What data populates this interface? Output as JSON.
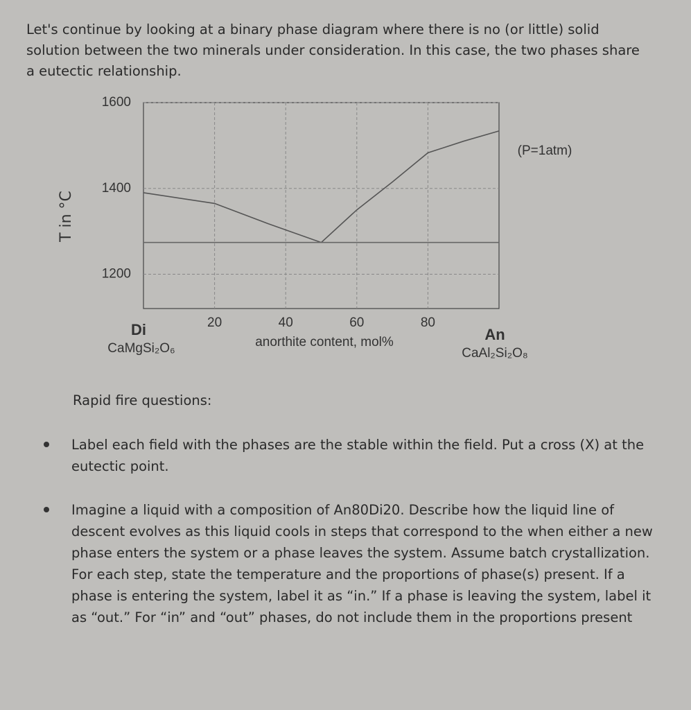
{
  "intro": "Let's continue by looking at a binary phase diagram where there is no (or little) solid solution between the two minerals under consideration.  In this case, the two phases share a eutectic relationship.",
  "chart_data": {
    "type": "line",
    "y_label": "T in °C",
    "x_label": "anorthite content, mol%",
    "annotation": "(P=1atm)",
    "left_end": {
      "name": "Di",
      "formula": "CaMgSi₂O₆"
    },
    "right_end": {
      "name": "An",
      "formula": "CaAl₂Si₂O₈"
    },
    "x": [
      0,
      20,
      35,
      50,
      60,
      70,
      80,
      90,
      100
    ],
    "series": [
      {
        "color": "#555555",
        "values": [
          1390,
          1365,
          1318,
          1274,
          1350,
          1415,
          1483,
          1510,
          1534
        ]
      },
      {
        "color": "#666666",
        "values": [
          1274,
          1274,
          1274,
          1274,
          1274,
          1274,
          1274,
          1274,
          1274
        ]
      }
    ],
    "xlim": [
      0,
      100
    ],
    "xticks": [
      20,
      40,
      60,
      80
    ],
    "ylim": [
      1120,
      1600
    ],
    "yticks": [
      1200,
      1400,
      1600
    ],
    "grid": true
  },
  "questions": {
    "heading": "Rapid fire questions:",
    "items": [
      "Label each field with the phases are the stable within the field.  Put a cross (X) at the eutectic point.",
      "Imagine a liquid with a composition of An80Di20.  Describe how the liquid line of descent evolves as this liquid cools in steps that correspond to the when either a new phase enters the system or a phase leaves the system.  Assume batch crystallization.  For each step, state the temperature and the proportions of phase(s) present.  If a phase is entering the system, label it as “in.”  If a phase is leaving the system, label it as “out.”  For “in” and “out” phases, do not include them in the proportions present"
    ]
  }
}
